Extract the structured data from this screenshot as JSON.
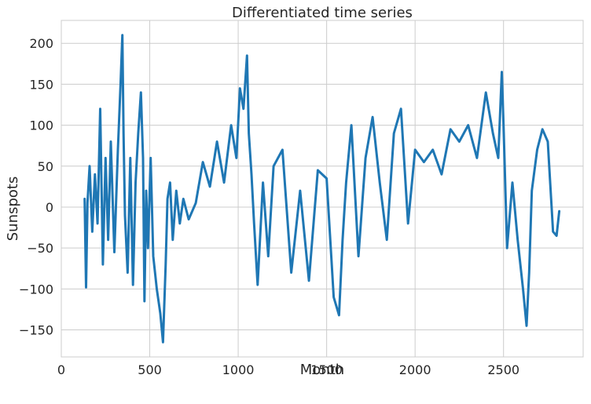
{
  "chart_data": {
    "type": "line",
    "title": "Differentiated time series",
    "xlabel": "Month",
    "ylabel": "Sunspots",
    "xlim": [
      0,
      2950
    ],
    "ylim": [
      -183,
      228
    ],
    "xticks": [
      0,
      500,
      1000,
      1500,
      2000,
      2500
    ],
    "xtick_labels": [
      "0",
      "500",
      "1000",
      "1500",
      "2000",
      "2500"
    ],
    "yticks": [
      -150,
      -100,
      -50,
      0,
      50,
      100,
      150,
      200
    ],
    "ytick_labels": [
      "−150",
      "−100",
      "−50",
      "0",
      "50",
      "100",
      "150",
      "200"
    ],
    "grid": true,
    "legend": "none",
    "colors": {
      "line": "#1f77b4",
      "grid": "#cccccc",
      "background": "#ffffff"
    },
    "series": [
      {
        "x": [
          132,
          140,
          148,
          160,
          175,
          190,
          205,
          220,
          235,
          250,
          265,
          280,
          300,
          320,
          335,
          345,
          352,
          360,
          375,
          390,
          405,
          420,
          435,
          450,
          462,
          470,
          480,
          490,
          505,
          520,
          540,
          560,
          575,
          590,
          600,
          615,
          630,
          650,
          670,
          690,
          720,
          760,
          800,
          840,
          880,
          920,
          960,
          990,
          1010,
          1030,
          1050,
          1060,
          1075,
          1090,
          1110,
          1140,
          1170,
          1200,
          1250,
          1300,
          1350,
          1400,
          1450,
          1500,
          1540,
          1570,
          1590,
          1610,
          1640,
          1680,
          1720,
          1760,
          1800,
          1840,
          1880,
          1920,
          1960,
          2000,
          2050,
          2100,
          2150,
          2200,
          2250,
          2300,
          2350,
          2400,
          2440,
          2470,
          2490,
          2500,
          2520,
          2550,
          2580,
          2610,
          2630,
          2645,
          2660,
          2690,
          2720,
          2750,
          2780,
          2800,
          2815
        ],
        "y": [
          10,
          -98,
          5,
          50,
          -30,
          40,
          -20,
          120,
          -70,
          60,
          -40,
          80,
          -55,
          70,
          150,
          210,
          90,
          -10,
          -80,
          60,
          -95,
          30,
          90,
          140,
          60,
          -115,
          20,
          -50,
          60,
          -60,
          -100,
          -130,
          -165,
          -70,
          10,
          30,
          -40,
          20,
          -20,
          10,
          -15,
          5,
          55,
          25,
          80,
          30,
          100,
          60,
          145,
          120,
          185,
          90,
          40,
          -20,
          -95,
          30,
          -60,
          50,
          70,
          -80,
          20,
          -90,
          45,
          35,
          -110,
          -132,
          -40,
          30,
          100,
          -60,
          60,
          110,
          30,
          -40,
          90,
          120,
          -20,
          70,
          55,
          70,
          40,
          95,
          80,
          100,
          60,
          140,
          90,
          60,
          165,
          100,
          -50,
          30,
          -40,
          -100,
          -145,
          -80,
          20,
          70,
          95,
          80,
          -30,
          -35,
          -5
        ]
      }
    ]
  }
}
